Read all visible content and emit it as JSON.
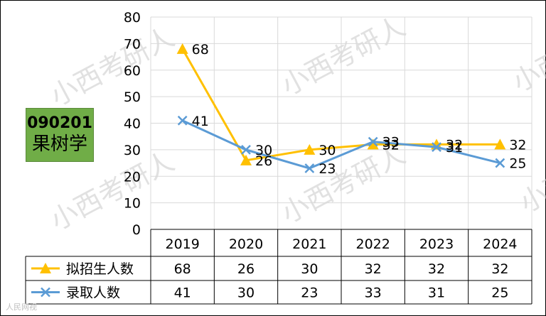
{
  "code_box": {
    "code": "090201",
    "name": "果树学"
  },
  "watermark": "小西考研人",
  "footer_watermark": "人民网视",
  "colors": {
    "series1": "#ffc000",
    "series2": "#5b9bd5",
    "badge": "#70ad47"
  },
  "chart_data": {
    "type": "line",
    "categories": [
      "2019",
      "2020",
      "2021",
      "2022",
      "2023",
      "2024"
    ],
    "ylim": [
      0,
      80
    ],
    "yticks": [
      "0",
      "10",
      "20",
      "30",
      "40",
      "50",
      "60",
      "70",
      "80"
    ],
    "grid": true,
    "series": [
      {
        "name": "拟招生人数",
        "marker": "triangle",
        "values": [
          68,
          26,
          30,
          32,
          32,
          32
        ]
      },
      {
        "name": "录取人数",
        "marker": "x",
        "values": [
          41,
          30,
          23,
          33,
          31,
          25
        ]
      }
    ],
    "legend_placement": "data-table"
  }
}
